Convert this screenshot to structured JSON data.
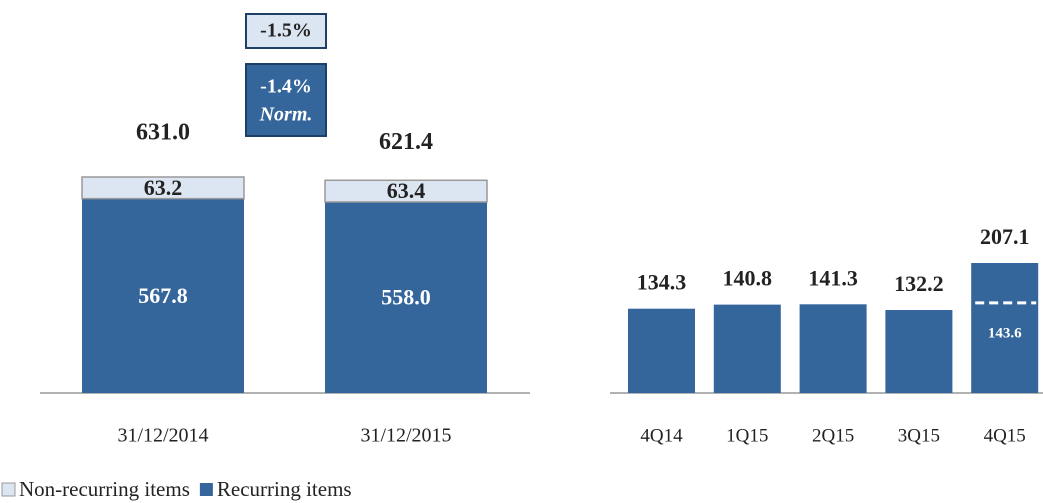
{
  "chart_data": [
    {
      "type": "stacked_bar",
      "categories": [
        "31/12/2014",
        "31/12/2015"
      ],
      "series": [
        {
          "name": "Non-recurring items",
          "color": "#dce6f2",
          "values": [
            63.2,
            63.4
          ],
          "value_labels": [
            "63.2",
            "63.4"
          ]
        },
        {
          "name": "Recurring items",
          "color": "#34659b",
          "values": [
            567.8,
            558.0
          ],
          "value_labels": [
            "567.8",
            "558.0"
          ]
        }
      ],
      "totals": [
        631.0,
        621.4
      ],
      "total_labels": [
        "631.0",
        "621.4"
      ],
      "annotations": [
        "-1.5%",
        "-1.4%",
        "Norm."
      ]
    },
    {
      "type": "bar",
      "categories": [
        "4Q14",
        "1Q15",
        "2Q15",
        "3Q15",
        "4Q15"
      ],
      "values": [
        134.3,
        140.8,
        141.3,
        132.2,
        207.1
      ],
      "color": "#34659b",
      "normalized_value": 143.6
    }
  ]
}
